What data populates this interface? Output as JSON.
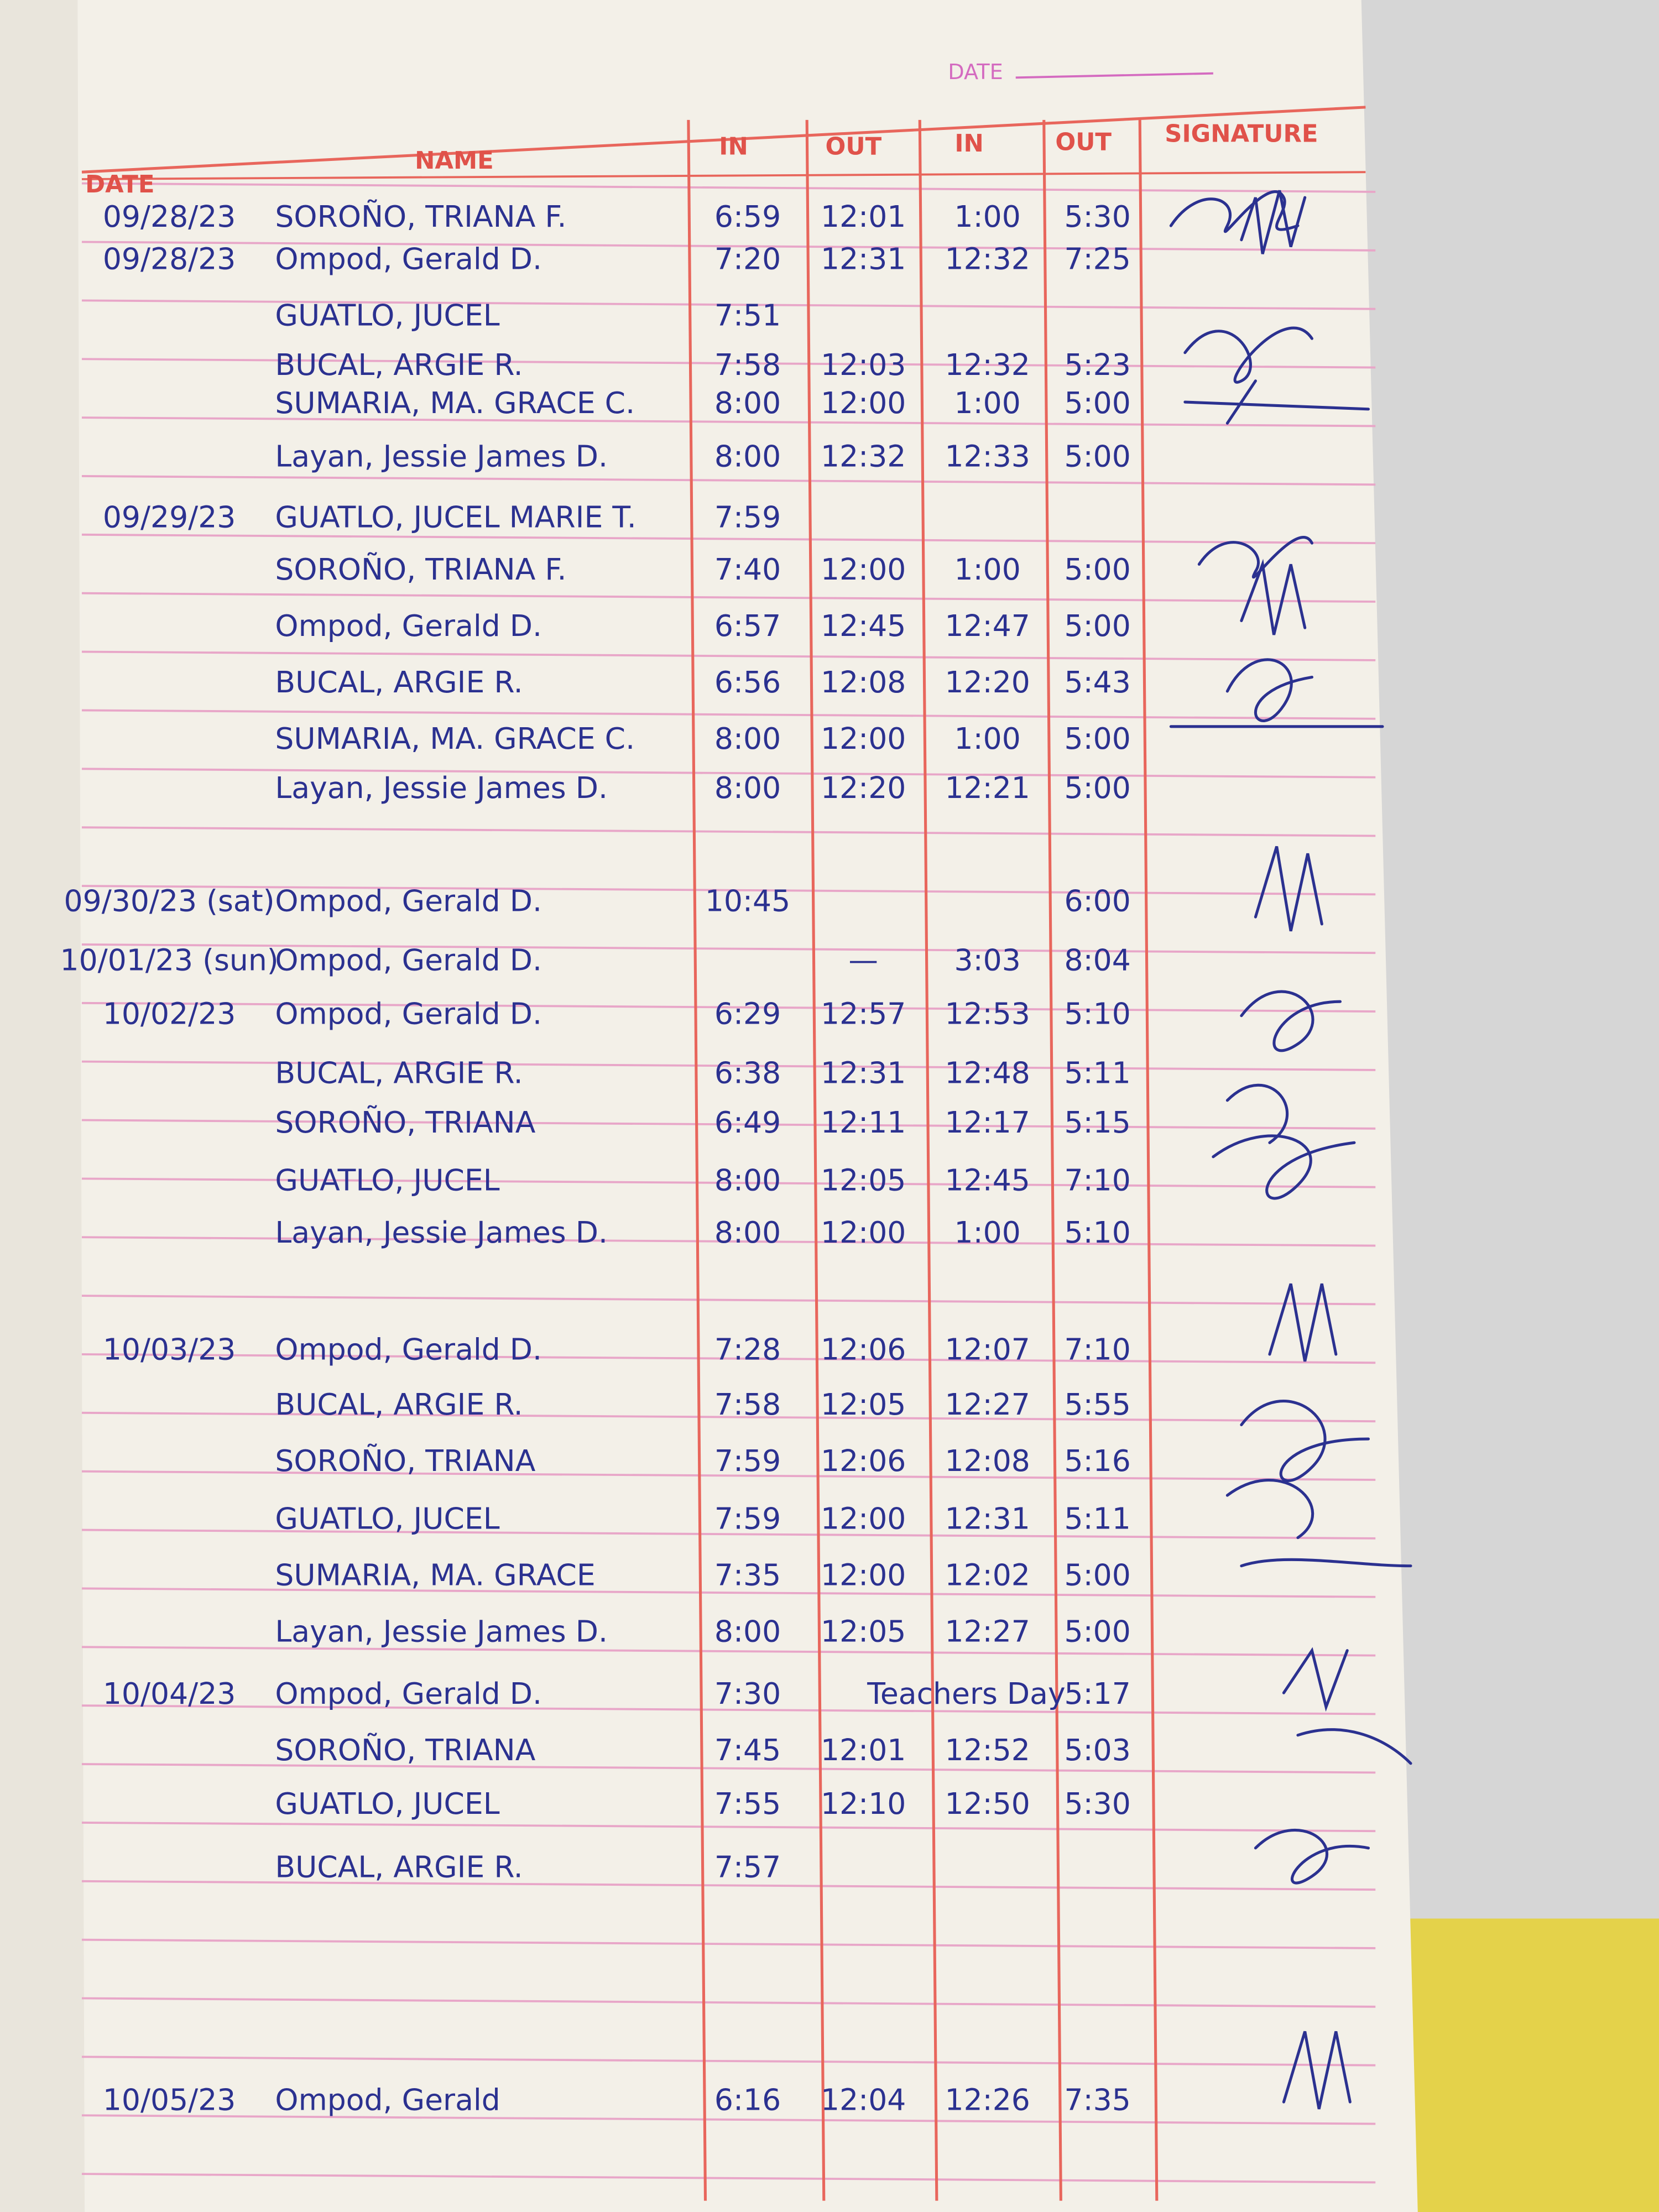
{
  "header": {
    "date_label": "DATE"
  },
  "table": {
    "columns": [
      "DATE",
      "NAME",
      "IN",
      "OUT",
      "IN",
      "OUT",
      "SIGNATURE"
    ],
    "rows": [
      {
        "date": "09/28/23",
        "name": "SOROÑO, TRIANA F.",
        "in1": "6:59",
        "out1": "12:01",
        "in2": "1:00",
        "out2": "5:30"
      },
      {
        "date": "09/28/23",
        "name": "Ompod, Gerald D.",
        "in1": "7:20",
        "out1": "12:31",
        "in2": "12:32",
        "out2": "7:25"
      },
      {
        "name": "GUATLO, JUCEL",
        "in1": "7:51"
      },
      {
        "name": "BUCAL, ARGIE R.",
        "in1": "7:58",
        "out1": "12:03",
        "in2": "12:32",
        "out2": "5:23"
      },
      {
        "name": "SUMARIA, MA. GRACE C.",
        "in1": "8:00",
        "out1": "12:00",
        "in2": "1:00",
        "out2": "5:00"
      },
      {
        "name": "Layan, Jessie James D.",
        "in1": "8:00",
        "out1": "12:32",
        "in2": "12:33",
        "out2": "5:00"
      },
      {
        "date": "09/29/23",
        "name": "GUATLO, JUCEL MARIE T.",
        "in1": "7:59"
      },
      {
        "name": "SOROÑO, TRIANA F.",
        "in1": "7:40",
        "out1": "12:00",
        "in2": "1:00",
        "out2": "5:00"
      },
      {
        "name": "Ompod, Gerald D.",
        "in1": "6:57",
        "out1": "12:45",
        "in2": "12:47",
        "out2": "5:00"
      },
      {
        "name": "BUCAL, ARGIE R.",
        "in1": "6:56",
        "out1": "12:08",
        "in2": "12:20",
        "out2": "5:43"
      },
      {
        "name": "SUMARIA, MA. GRACE C.",
        "in1": "8:00",
        "out1": "12:00",
        "in2": "1:00",
        "out2": "5:00"
      },
      {
        "name": "Layan, Jessie James D.",
        "in1": "8:00",
        "out1": "12:20",
        "in2": "12:21",
        "out2": "5:00"
      },
      {
        "date": "09/30/23 (sat)",
        "name": "Ompod, Gerald D.",
        "in1": "10:45",
        "out2": "6:00"
      },
      {
        "date": "10/01/23 (sun)",
        "name": "Ompod, Gerald D.",
        "out1": "—",
        "in2": "3:03",
        "out2": "8:04"
      },
      {
        "date": "10/02/23",
        "name": "Ompod, Gerald D.",
        "in1": "6:29",
        "out1": "12:57",
        "in2": "12:53",
        "out2": "5:10"
      },
      {
        "name": "BUCAL, ARGIE R.",
        "in1": "6:38",
        "out1": "12:31",
        "in2": "12:48",
        "out2": "5:11"
      },
      {
        "name": "SOROÑO, TRIANA",
        "in1": "6:49",
        "out1": "12:11",
        "in2": "12:17",
        "out2": "5:15"
      },
      {
        "name": "GUATLO, JUCEL",
        "in1": "8:00",
        "out1": "12:05",
        "in2": "12:45",
        "out2": "7:10"
      },
      {
        "name": "Layan, Jessie James D.",
        "in1": "8:00",
        "out1": "12:00",
        "in2": "1:00",
        "out2": "5:10"
      },
      {
        "date": "10/03/23",
        "name": "Ompod, Gerald D.",
        "in1": "7:28",
        "out1": "12:06",
        "in2": "12:07",
        "out2": "7:10"
      },
      {
        "name": "BUCAL, ARGIE R.",
        "in1": "7:58",
        "out1": "12:05",
        "in2": "12:27",
        "out2": "5:55"
      },
      {
        "name": "SOROÑO, TRIANA",
        "in1": "7:59",
        "out1": "12:06",
        "in2": "12:08",
        "out2": "5:16"
      },
      {
        "name": "GUATLO, JUCEL",
        "in1": "7:59",
        "out1": "12:00",
        "in2": "12:31",
        "out2": "5:11"
      },
      {
        "name": "SUMARIA, MA. GRACE",
        "in1": "7:35",
        "out1": "12:00",
        "in2": "12:02",
        "out2": "5:00"
      },
      {
        "name": "Layan, Jessie James D.",
        "in1": "8:00",
        "out1": "12:05",
        "in2": "12:27",
        "out2": "5:00"
      },
      {
        "date": "10/04/23",
        "name": "Ompod, Gerald D.",
        "in1": "7:30",
        "note": "Teachers Day",
        "out2": "5:17"
      },
      {
        "name": "SOROÑO, TRIANA",
        "in1": "7:45",
        "out1": "12:01",
        "in2": "12:52",
        "out2": "5:03"
      },
      {
        "name": "GUATLO, JUCEL",
        "in1": "7:55",
        "out1": "12:10",
        "in2": "12:50",
        "out2": "5:30"
      },
      {
        "name": "BUCAL, ARGIE R.",
        "in1": "7:57"
      },
      {
        "date": "10/05/23",
        "name": "Ompod, Gerald",
        "in1": "6:16",
        "out1": "12:04",
        "in2": "12:26",
        "out2": "7:35"
      }
    ]
  }
}
